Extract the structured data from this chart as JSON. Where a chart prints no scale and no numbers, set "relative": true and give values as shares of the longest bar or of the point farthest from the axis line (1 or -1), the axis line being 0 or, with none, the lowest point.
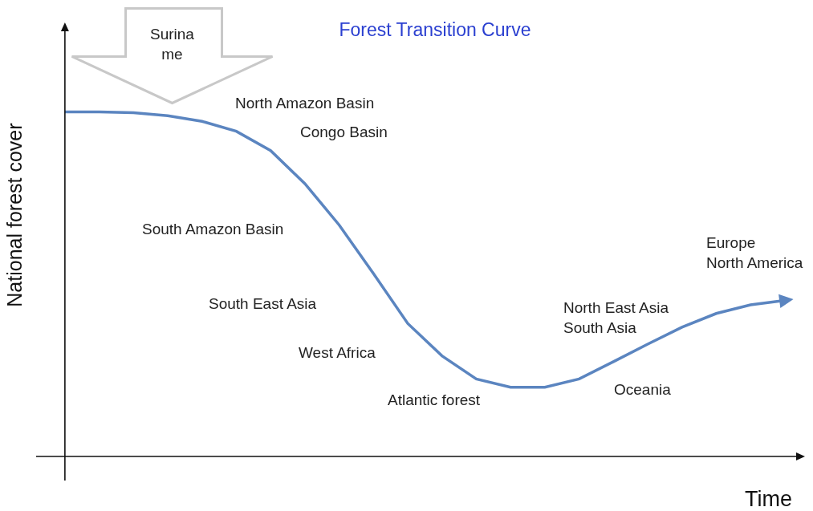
{
  "chart_data": {
    "type": "line",
    "title": "Forest Transition Curve",
    "xlabel": "Time",
    "ylabel": "National forest cover",
    "relative": true,
    "line_style": "solid",
    "categories": [
      null,
      null,
      null,
      null,
      null,
      null,
      null,
      null,
      null,
      null,
      null,
      null,
      null,
      null,
      null,
      null,
      null,
      null,
      null,
      null,
      null,
      null
    ],
    "series": [
      {
        "color": "#5b85c0",
        "values": [
          1,
          1,
          0.998,
          0.989,
          0.973,
          0.944,
          0.888,
          0.792,
          0.672,
          0.531,
          0.386,
          0.292,
          0.225,
          0.201,
          0.201,
          0.225,
          0.275,
          0.326,
          0.375,
          0.415,
          0.44,
          0.453
        ]
      }
    ],
    "annotations": [
      "Surina\nme",
      "North Amazon Basin",
      "Congo Basin",
      "South Amazon Basin",
      "South East Asia",
      "West Africa",
      "Atlantic forest",
      "North East Asia\nSouth Asia",
      "Oceania",
      "Europe\nNorth America"
    ]
  }
}
